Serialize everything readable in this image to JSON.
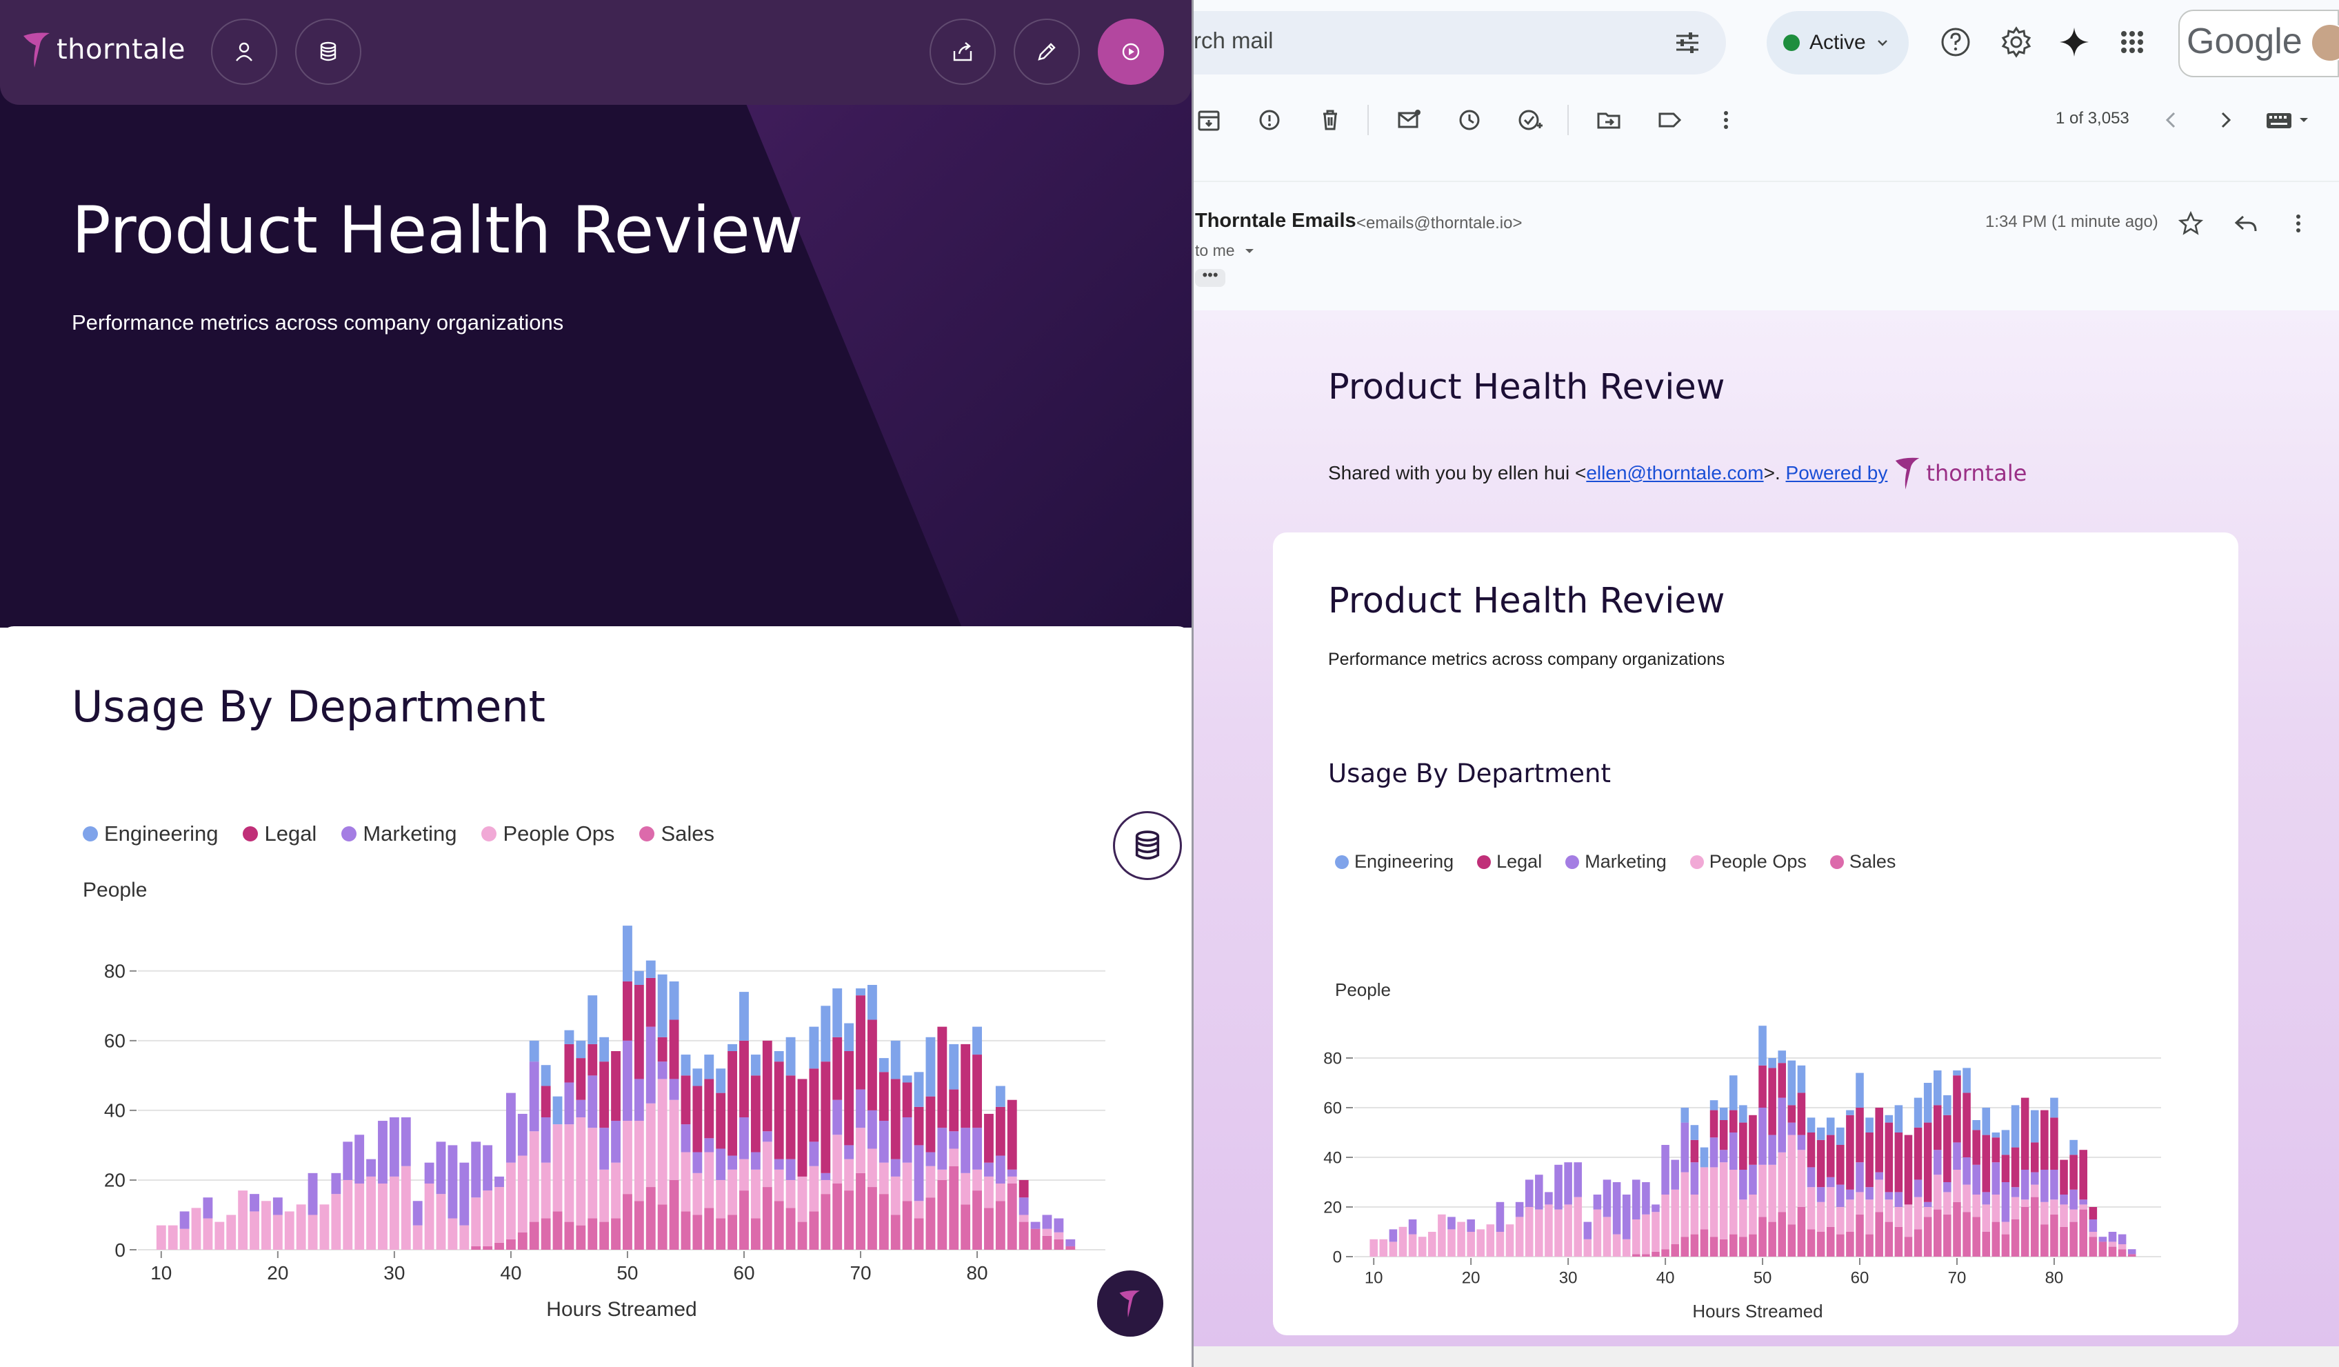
{
  "app": {
    "brand_name": "thorntale",
    "report_title": "Product Health Review",
    "report_subtitle": "Performance metrics across company organizations",
    "section_title": "Usage By Department"
  },
  "gmail": {
    "search_placeholder": "rch mail",
    "status_label": "Active",
    "google_wordmark": "Google",
    "page_count": "1 of 3,053",
    "sender_name": "Thorntale Emails",
    "sender_email": "<emails@thorntale.io>",
    "recipient": "to me",
    "timestamp": "1:34 PM (1 minute ago)",
    "email": {
      "heading": "Product Health Review",
      "shared_prefix": "Shared with you by ellen hui <",
      "shared_email": "ellen@thorntale.com",
      "shared_suffix": ">. ",
      "powered_by": "Powered by",
      "brand_name": "thorntale",
      "card_title": "Product Health Review",
      "card_subtitle": "Performance metrics across company organizations",
      "card_section": "Usage By Department"
    }
  },
  "colors": {
    "Engineering": "#7fa3ea",
    "Legal": "#c02f78",
    "Marketing": "#a47de3",
    "People Ops": "#f1a9d6",
    "Sales": "#dc6aab",
    "brand_pink": "#b3479f",
    "hero_dark": "#1d0d33"
  },
  "chart_data": {
    "type": "bar",
    "stacked": true,
    "xlabel": "Hours Streamed",
    "ylabel": "People",
    "xlim": [
      8,
      91
    ],
    "ylim": [
      0,
      95
    ],
    "x_ticks": [
      10,
      20,
      30,
      40,
      50,
      60,
      70,
      80
    ],
    "y_ticks": [
      0,
      20,
      40,
      60,
      80
    ],
    "grid": true,
    "legend_position": "top-left",
    "series_order": [
      "Sales",
      "People Ops",
      "Marketing",
      "Legal",
      "Engineering"
    ],
    "x": [
      10,
      11,
      12,
      13,
      14,
      15,
      16,
      17,
      18,
      19,
      20,
      21,
      22,
      23,
      24,
      25,
      26,
      27,
      28,
      29,
      30,
      31,
      32,
      33,
      34,
      35,
      36,
      37,
      38,
      39,
      40,
      41,
      42,
      43,
      44,
      45,
      46,
      47,
      48,
      49,
      50,
      51,
      52,
      53,
      54,
      55,
      56,
      57,
      58,
      59,
      60,
      61,
      62,
      63,
      64,
      65,
      66,
      67,
      68,
      69,
      70,
      71,
      72,
      73,
      74,
      75,
      76,
      77,
      78,
      79,
      80,
      81,
      82,
      83,
      84,
      85,
      86,
      87,
      88,
      89
    ],
    "series": [
      {
        "name": "Sales",
        "values": [
          0,
          0,
          0,
          0,
          0,
          0,
          0,
          0,
          0,
          0,
          0,
          0,
          0,
          0,
          0,
          0,
          0,
          0,
          0,
          0,
          0,
          0,
          0,
          0,
          0,
          0,
          0,
          1,
          1,
          2,
          3,
          5,
          8,
          9,
          11,
          8,
          7,
          9,
          8,
          9,
          16,
          14,
          18,
          13,
          20,
          11,
          10,
          12,
          9,
          10,
          17,
          9,
          18,
          14,
          12,
          8,
          11,
          16,
          19,
          17,
          22,
          18,
          16,
          10,
          14,
          9,
          15,
          20,
          24,
          13,
          17,
          12,
          14,
          19,
          8,
          6,
          4,
          3,
          1,
          0
        ]
      },
      {
        "name": "People Ops",
        "values": [
          7,
          7,
          6,
          12,
          9,
          8,
          10,
          17,
          11,
          14,
          10,
          11,
          13,
          10,
          13,
          16,
          20,
          19,
          21,
          19,
          21,
          24,
          7,
          19,
          16,
          9,
          7,
          14,
          16,
          16,
          22,
          22,
          26,
          16,
          25,
          28,
          31,
          26,
          15,
          16,
          21,
          23,
          24,
          36,
          23,
          17,
          12,
          16,
          11,
          13,
          9,
          14,
          13,
          9,
          8,
          13,
          13,
          4,
          14,
          9,
          13,
          11,
          9,
          11,
          11,
          5,
          9,
          3,
          5,
          9,
          6,
          9,
          5,
          2,
          2,
          0,
          2,
          2,
          0,
          0
        ]
      },
      {
        "name": "Marketing",
        "values": [
          0,
          0,
          5,
          0,
          6,
          0,
          0,
          0,
          5,
          0,
          5,
          0,
          0,
          12,
          0,
          6,
          11,
          14,
          5,
          18,
          17,
          14,
          7,
          6,
          15,
          21,
          18,
          16,
          13,
          3,
          20,
          12,
          20,
          13,
          0,
          12,
          5,
          15,
          12,
          12,
          23,
          12,
          22,
          5,
          6,
          8,
          6,
          4,
          9,
          4,
          12,
          5,
          3,
          3,
          6,
          0,
          7,
          2,
          10,
          4,
          11,
          11,
          12,
          5,
          13,
          16,
          4,
          12,
          5,
          13,
          12,
          4,
          8,
          2,
          5,
          2,
          4,
          4,
          2,
          0
        ]
      },
      {
        "name": "Legal",
        "values": [
          0,
          0,
          0,
          0,
          0,
          0,
          0,
          0,
          0,
          0,
          0,
          0,
          0,
          0,
          0,
          0,
          0,
          0,
          0,
          0,
          0,
          0,
          0,
          0,
          0,
          0,
          0,
          0,
          0,
          0,
          0,
          0,
          0,
          9,
          0,
          11,
          12,
          9,
          19,
          20,
          17,
          27,
          14,
          7,
          17,
          14,
          19,
          17,
          16,
          30,
          22,
          22,
          26,
          28,
          24,
          28,
          21,
          32,
          18,
          27,
          27,
          26,
          14,
          23,
          10,
          11,
          16,
          29,
          12,
          24,
          21,
          14,
          14,
          20,
          5,
          0,
          0,
          0,
          0,
          0
        ]
      },
      {
        "name": "Engineering",
        "values": [
          0,
          0,
          0,
          0,
          0,
          0,
          0,
          0,
          0,
          0,
          0,
          0,
          0,
          0,
          0,
          0,
          0,
          0,
          0,
          0,
          0,
          0,
          0,
          0,
          0,
          0,
          0,
          0,
          0,
          0,
          0,
          0,
          6,
          6,
          8,
          4,
          5,
          14,
          7,
          0,
          16,
          4,
          5,
          18,
          11,
          6,
          5,
          7,
          7,
          2,
          14,
          6,
          0,
          3,
          11,
          0,
          12,
          16,
          14,
          8,
          2,
          10,
          4,
          11,
          2,
          10,
          17,
          0,
          13,
          0,
          8,
          0,
          6,
          0,
          0,
          0,
          0,
          0,
          0,
          0
        ]
      }
    ]
  }
}
